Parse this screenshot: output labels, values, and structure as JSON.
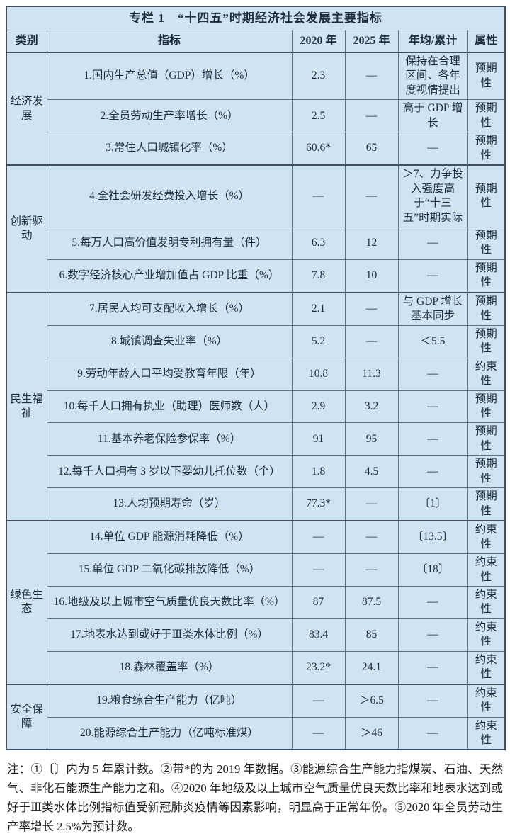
{
  "table": {
    "title": "专栏 1　“十四五”时期经济社会发展主要指标",
    "headers": [
      "类别",
      "指标",
      "2020 年",
      "2025 年",
      "年均/累计",
      "属性"
    ],
    "groups": [
      {
        "category": "经济发展",
        "rows": [
          {
            "indicator": "1.国内生产总值（GDP）增长（%）",
            "y2020": "2.3",
            "y2025": "—",
            "avg": "保持在合理区间、各年度视情提出",
            "attr": "预期性"
          },
          {
            "indicator": "2.全员劳动生产率增长（%）",
            "y2020": "2.5",
            "y2025": "—",
            "avg": "高于 GDP 增长",
            "attr": "预期性"
          },
          {
            "indicator": "3.常住人口城镇化率（%）",
            "y2020": "60.6*",
            "y2025": "65",
            "avg": "—",
            "attr": "预期性"
          }
        ]
      },
      {
        "category": "创新驱动",
        "rows": [
          {
            "indicator": "4.全社会研发经费投入增长（%）",
            "y2020": "—",
            "y2025": "—",
            "avg": "＞7、力争投入强度高于“十三五”时期实际",
            "attr": "预期性"
          },
          {
            "indicator": "5.每万人口高价值发明专利拥有量（件）",
            "y2020": "6.3",
            "y2025": "12",
            "avg": "—",
            "attr": "预期性"
          },
          {
            "indicator": "6.数字经济核心产业增加值占 GDP 比重（%）",
            "y2020": "7.8",
            "y2025": "10",
            "avg": "—",
            "attr": "预期性"
          }
        ]
      },
      {
        "category": "民生福祉",
        "rows": [
          {
            "indicator": "7.居民人均可支配收入增长（%）",
            "y2020": "2.1",
            "y2025": "—",
            "avg": "与 GDP 增长基本同步",
            "attr": "预期性"
          },
          {
            "indicator": "8.城镇调查失业率（%）",
            "y2020": "5.2",
            "y2025": "—",
            "avg": "＜5.5",
            "attr": "预期性"
          },
          {
            "indicator": "9.劳动年龄人口平均受教育年限（年）",
            "y2020": "10.8",
            "y2025": "11.3",
            "avg": "—",
            "attr": "约束性"
          },
          {
            "indicator": "10.每千人口拥有执业（助理）医师数（人）",
            "y2020": "2.9",
            "y2025": "3.2",
            "avg": "—",
            "attr": "预期性"
          },
          {
            "indicator": "11.基本养老保险参保率（%）",
            "y2020": "91",
            "y2025": "95",
            "avg": "—",
            "attr": "预期性"
          },
          {
            "indicator": "12.每千人口拥有 3 岁以下婴幼儿托位数（个）",
            "y2020": "1.8",
            "y2025": "4.5",
            "avg": "—",
            "attr": "预期性"
          },
          {
            "indicator": "13.人均预期寿命（岁）",
            "y2020": "77.3*",
            "y2025": "—",
            "avg": "〔1〕",
            "attr": "预期性"
          }
        ]
      },
      {
        "category": "绿色生态",
        "rows": [
          {
            "indicator": "14.单位 GDP 能源消耗降低（%）",
            "y2020": "—",
            "y2025": "—",
            "avg": "〔13.5〕",
            "attr": "约束性"
          },
          {
            "indicator": "15.单位 GDP 二氧化碳排放降低（%）",
            "y2020": "—",
            "y2025": "—",
            "avg": "〔18〕",
            "attr": "约束性"
          },
          {
            "indicator": "16.地级及以上城市空气质量优良天数比率（%）",
            "y2020": "87",
            "y2025": "87.5",
            "avg": "—",
            "attr": "约束性"
          },
          {
            "indicator": "17.地表水达到或好于Ⅲ类水体比例（%）",
            "y2020": "83.4",
            "y2025": "85",
            "avg": "—",
            "attr": "约束性"
          },
          {
            "indicator": "18.森林覆盖率（%）",
            "y2020": "23.2*",
            "y2025": "24.1",
            "avg": "—",
            "attr": "约束性"
          }
        ]
      },
      {
        "category": "安全保障",
        "rows": [
          {
            "indicator": "19.粮食综合生产能力（亿吨）",
            "y2020": "—",
            "y2025": "＞6.5",
            "avg": "—",
            "attr": "约束性"
          },
          {
            "indicator": "20.能源综合生产能力（亿吨标准煤）",
            "y2020": "—",
            "y2025": "＞46",
            "avg": "—",
            "attr": "约束性"
          }
        ]
      }
    ]
  },
  "notes": "注：①〔〕内为 5 年累计数。②带*的为 2019 年数据。③能源综合生产能力指煤炭、石油、天然气、非化石能源生产能力之和。④2020 年地级及以上城市空气质量优良天数比率和地表水达到或好于Ⅲ类水体比例指标值受新冠肺炎疫情等因素影响，明显高于正常年份。⑤2020 年全员劳动生产率增长 2.5%为预计数。",
  "colors": {
    "cell_background": "#cfe4f2",
    "outer_border": "#414e5c",
    "inner_border": "#5d6e80",
    "table_text": "#1e2c3e",
    "notes_text": "#1c1c1c"
  }
}
